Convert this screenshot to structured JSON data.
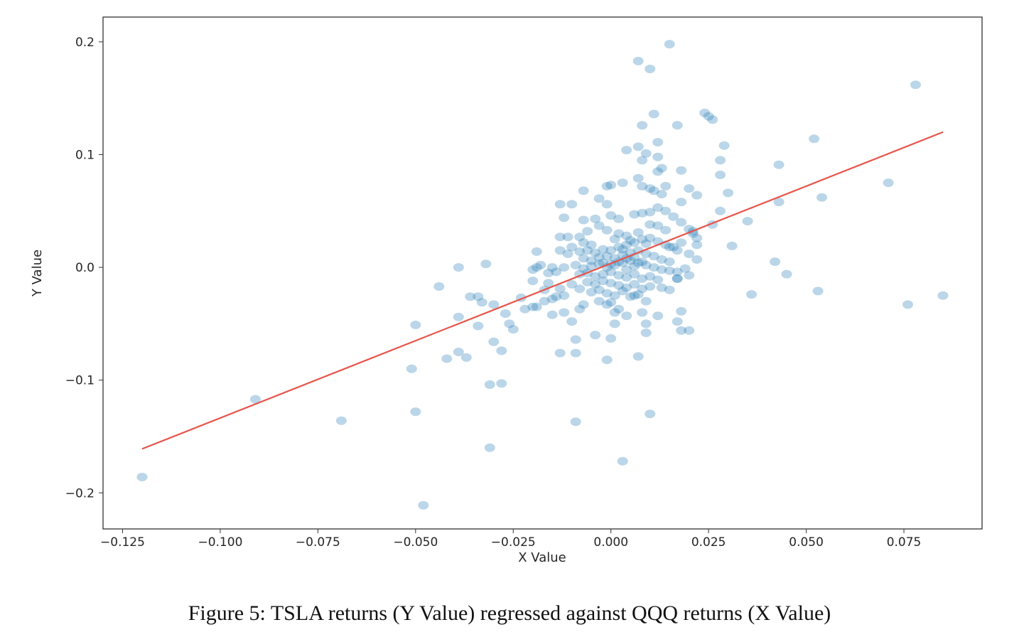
{
  "chart_data": {
    "type": "scatter",
    "xlabel": "X Value",
    "ylabel": "Y Value",
    "xlim": [
      -0.13,
      0.095
    ],
    "ylim": [
      -0.232,
      0.222
    ],
    "xticks": [
      -0.125,
      -0.1,
      -0.075,
      -0.05,
      -0.025,
      0.0,
      0.025,
      0.05,
      0.075
    ],
    "xtick_labels": [
      "−0.125",
      "−0.100",
      "−0.075",
      "−0.050",
      "−0.025",
      "0.000",
      "0.025",
      "0.050",
      "0.075"
    ],
    "yticks": [
      -0.2,
      -0.1,
      0.0,
      0.1,
      0.2
    ],
    "ytick_labels": [
      "−0.2",
      "−0.1",
      "0.0",
      "0.1",
      "0.2"
    ],
    "grid": false,
    "colors": {
      "points": "#1f77b4",
      "fit_line": "#e8544a",
      "axes": "#333333"
    },
    "fit_line": {
      "x": [
        -0.12,
        0.085
      ],
      "y": [
        -0.161,
        0.12
      ]
    },
    "series": [
      {
        "points": [
          [
            -0.12,
            -0.186
          ],
          [
            -0.091,
            -0.117
          ],
          [
            -0.069,
            -0.136
          ],
          [
            -0.048,
            -0.211
          ],
          [
            -0.05,
            -0.128
          ],
          [
            -0.051,
            -0.09
          ],
          [
            -0.031,
            -0.16
          ],
          [
            -0.031,
            -0.104
          ],
          [
            -0.028,
            -0.103
          ],
          [
            -0.05,
            -0.051
          ],
          [
            -0.042,
            -0.081
          ],
          [
            -0.037,
            -0.08
          ],
          [
            -0.039,
            -0.075
          ],
          [
            -0.03,
            -0.066
          ],
          [
            -0.028,
            -0.074
          ],
          [
            -0.039,
            -0.044
          ],
          [
            -0.034,
            -0.052
          ],
          [
            -0.044,
            -0.017
          ],
          [
            -0.039,
            0.0
          ],
          [
            -0.032,
            0.003
          ],
          [
            -0.036,
            -0.026
          ],
          [
            -0.034,
            -0.026
          ],
          [
            -0.033,
            -0.031
          ],
          [
            -0.03,
            -0.033
          ],
          [
            -0.027,
            -0.041
          ],
          [
            -0.026,
            -0.05
          ],
          [
            -0.025,
            -0.055
          ],
          [
            -0.022,
            -0.037
          ],
          [
            -0.023,
            -0.027
          ],
          [
            -0.02,
            -0.035
          ],
          [
            -0.019,
            -0.035
          ],
          [
            -0.017,
            -0.03
          ],
          [
            -0.02,
            -0.012
          ],
          [
            -0.019,
            0.0
          ],
          [
            -0.018,
            0.002
          ],
          [
            -0.016,
            -0.005
          ],
          [
            -0.02,
            -0.002
          ],
          [
            -0.016,
            -0.014
          ],
          [
            -0.017,
            -0.02
          ],
          [
            -0.019,
            0.014
          ],
          [
            -0.013,
            0.015
          ],
          [
            -0.011,
            0.012
          ],
          [
            -0.015,
            0.0
          ],
          [
            -0.014,
            -0.004
          ],
          [
            -0.012,
            0.0
          ],
          [
            -0.013,
            -0.019
          ],
          [
            -0.014,
            -0.026
          ],
          [
            -0.015,
            -0.028
          ],
          [
            -0.012,
            -0.025
          ],
          [
            -0.012,
            -0.04
          ],
          [
            -0.015,
            -0.042
          ],
          [
            -0.013,
            -0.076
          ],
          [
            -0.009,
            -0.076
          ],
          [
            -0.009,
            -0.064
          ],
          [
            -0.009,
            -0.137
          ],
          [
            -0.01,
            -0.048
          ],
          [
            -0.008,
            -0.037
          ],
          [
            -0.007,
            -0.033
          ],
          [
            -0.004,
            -0.06
          ],
          [
            -0.001,
            -0.082
          ],
          [
            0.003,
            -0.172
          ],
          [
            0.01,
            -0.13
          ],
          [
            0.007,
            -0.079
          ],
          [
            0.008,
            -0.04
          ],
          [
            0.009,
            -0.05
          ],
          [
            0.009,
            -0.058
          ],
          [
            0.012,
            -0.043
          ],
          [
            0.004,
            -0.043
          ],
          [
            0.001,
            -0.04
          ],
          [
            0.001,
            -0.05
          ],
          [
            0.0,
            -0.063
          ],
          [
            -0.001,
            -0.033
          ],
          [
            0.017,
            -0.048
          ],
          [
            0.018,
            -0.056
          ],
          [
            0.02,
            -0.056
          ],
          [
            0.018,
            -0.039
          ],
          [
            0.013,
            -0.018
          ],
          [
            0.015,
            -0.02
          ],
          [
            0.017,
            -0.01
          ],
          [
            0.02,
            -0.007
          ],
          [
            0.022,
            0.007
          ],
          [
            0.02,
            0.012
          ],
          [
            0.017,
            0.015
          ],
          [
            0.015,
            0.018
          ],
          [
            0.022,
            0.02
          ],
          [
            0.022,
            0.026
          ],
          [
            0.021,
            0.03
          ],
          [
            0.02,
            0.034
          ],
          [
            0.026,
            0.038
          ],
          [
            0.028,
            0.05
          ],
          [
            0.031,
            0.019
          ],
          [
            0.024,
            0.137
          ],
          [
            0.025,
            0.134
          ],
          [
            0.026,
            0.131
          ],
          [
            0.015,
            0.198
          ],
          [
            0.007,
            0.183
          ],
          [
            0.01,
            0.176
          ],
          [
            0.011,
            0.136
          ],
          [
            0.017,
            0.126
          ],
          [
            0.008,
            0.126
          ],
          [
            0.012,
            0.111
          ],
          [
            0.004,
            0.104
          ],
          [
            0.007,
            0.107
          ],
          [
            0.009,
            0.101
          ],
          [
            0.012,
            0.098
          ],
          [
            0.008,
            0.095
          ],
          [
            0.013,
            0.088
          ],
          [
            0.012,
            0.085
          ],
          [
            0.018,
            0.086
          ],
          [
            0.029,
            0.108
          ],
          [
            0.028,
            0.095
          ],
          [
            0.028,
            0.082
          ],
          [
            0.03,
            0.066
          ],
          [
            0.022,
            0.064
          ],
          [
            0.02,
            0.07
          ],
          [
            0.018,
            0.058
          ],
          [
            0.014,
            0.072
          ],
          [
            0.013,
            0.065
          ],
          [
            0.011,
            0.068
          ],
          [
            0.01,
            0.07
          ],
          [
            0.007,
            0.079
          ],
          [
            0.008,
            0.072
          ],
          [
            0.003,
            0.075
          ],
          [
            0.0,
            0.073
          ],
          [
            -0.001,
            0.072
          ],
          [
            -0.007,
            0.068
          ],
          [
            -0.003,
            0.061
          ],
          [
            -0.001,
            0.056
          ],
          [
            -0.01,
            0.056
          ],
          [
            -0.013,
            0.056
          ],
          [
            -0.012,
            0.044
          ],
          [
            -0.007,
            0.042
          ],
          [
            -0.004,
            0.043
          ],
          [
            0.0,
            0.046
          ],
          [
            0.002,
            0.043
          ],
          [
            0.006,
            0.047
          ],
          [
            0.008,
            0.048
          ],
          [
            0.01,
            0.049
          ],
          [
            0.012,
            0.053
          ],
          [
            0.014,
            0.05
          ],
          [
            0.016,
            0.045
          ],
          [
            0.018,
            0.04
          ],
          [
            0.021,
            0.032
          ],
          [
            0.014,
            0.033
          ],
          [
            0.012,
            0.037
          ],
          [
            0.01,
            0.038
          ],
          [
            0.007,
            0.031
          ],
          [
            0.004,
            0.028
          ],
          [
            0.002,
            0.03
          ],
          [
            -0.001,
            0.033
          ],
          [
            -0.003,
            0.037
          ],
          [
            -0.006,
            0.032
          ],
          [
            -0.008,
            0.027
          ],
          [
            -0.011,
            0.027
          ],
          [
            -0.013,
            0.027
          ],
          [
            -0.01,
            0.018
          ],
          [
            -0.008,
            0.014
          ],
          [
            -0.006,
            0.015
          ],
          [
            -0.004,
            0.013
          ],
          [
            -0.002,
            0.016
          ],
          [
            0.0,
            0.015
          ],
          [
            0.002,
            0.018
          ],
          [
            0.004,
            0.02
          ],
          [
            0.006,
            0.022
          ],
          [
            0.008,
            0.025
          ],
          [
            0.01,
            0.026
          ],
          [
            0.012,
            0.023
          ],
          [
            0.014,
            0.02
          ],
          [
            0.016,
            0.018
          ],
          [
            0.018,
            0.022
          ],
          [
            -0.007,
            0.008
          ],
          [
            -0.005,
            0.006
          ],
          [
            -0.003,
            0.009
          ],
          [
            -0.001,
            0.01
          ],
          [
            0.001,
            0.008
          ],
          [
            0.003,
            0.011
          ],
          [
            0.005,
            0.013
          ],
          [
            0.007,
            0.015
          ],
          [
            0.009,
            0.012
          ],
          [
            0.011,
            0.01
          ],
          [
            0.013,
            0.007
          ],
          [
            0.015,
            0.005
          ],
          [
            -0.009,
            0.002
          ],
          [
            -0.007,
            -0.001
          ],
          [
            -0.005,
            0.001
          ],
          [
            -0.003,
            0.003
          ],
          [
            -0.001,
            0.0
          ],
          [
            0.001,
            0.002
          ],
          [
            0.003,
            0.004
          ],
          [
            0.005,
            0.006
          ],
          [
            0.007,
            0.004
          ],
          [
            0.009,
            0.002
          ],
          [
            0.011,
            0.0
          ],
          [
            0.013,
            -0.002
          ],
          [
            0.015,
            -0.003
          ],
          [
            0.017,
            -0.004
          ],
          [
            -0.008,
            -0.006
          ],
          [
            -0.006,
            -0.005
          ],
          [
            -0.004,
            -0.008
          ],
          [
            -0.002,
            -0.006
          ],
          [
            0.0,
            -0.004
          ],
          [
            0.002,
            -0.007
          ],
          [
            0.004,
            -0.009
          ],
          [
            0.006,
            -0.006
          ],
          [
            0.008,
            -0.01
          ],
          [
            0.01,
            -0.008
          ],
          [
            0.012,
            -0.011
          ],
          [
            -0.006,
            -0.013
          ],
          [
            -0.004,
            -0.015
          ],
          [
            -0.002,
            -0.012
          ],
          [
            0.0,
            -0.014
          ],
          [
            0.002,
            -0.016
          ],
          [
            0.004,
            -0.018
          ],
          [
            0.006,
            -0.015
          ],
          [
            0.008,
            -0.019
          ],
          [
            0.01,
            -0.017
          ],
          [
            -0.005,
            -0.022
          ],
          [
            -0.003,
            -0.02
          ],
          [
            -0.001,
            -0.023
          ],
          [
            0.001,
            -0.025
          ],
          [
            0.003,
            -0.021
          ],
          [
            0.005,
            -0.026
          ],
          [
            0.007,
            -0.024
          ],
          [
            -0.008,
            -0.019
          ],
          [
            -0.01,
            -0.015
          ],
          [
            -0.003,
            -0.03
          ],
          [
            0.0,
            -0.031
          ],
          [
            0.002,
            -0.037
          ],
          [
            0.006,
            -0.025
          ],
          [
            0.009,
            -0.03
          ],
          [
            0.017,
            -0.01
          ],
          [
            0.019,
            -0.001
          ],
          [
            0.004,
            -0.002
          ],
          [
            0.006,
            0.001
          ],
          [
            0.008,
            0.005
          ],
          [
            0.002,
            0.005
          ],
          [
            0.0,
            0.003
          ],
          [
            -0.002,
            0.004
          ],
          [
            0.004,
            0.008
          ],
          [
            0.006,
            0.009
          ],
          [
            0.003,
            0.016
          ],
          [
            -0.005,
            0.02
          ],
          [
            -0.007,
            0.022
          ],
          [
            0.001,
            0.025
          ],
          [
            0.005,
            0.024
          ],
          [
            0.009,
            0.021
          ],
          [
            0.043,
            0.091
          ],
          [
            0.052,
            0.114
          ],
          [
            0.054,
            0.062
          ],
          [
            0.043,
            0.058
          ],
          [
            0.035,
            0.041
          ],
          [
            0.042,
            0.005
          ],
          [
            0.045,
            -0.006
          ],
          [
            0.036,
            -0.024
          ],
          [
            0.053,
            -0.021
          ],
          [
            0.071,
            0.075
          ],
          [
            0.078,
            0.162
          ],
          [
            0.076,
            -0.033
          ],
          [
            0.085,
            -0.025
          ]
        ]
      }
    ]
  },
  "caption": "Figure 5: TSLA returns (Y Value) regressed against QQQ returns (X Value)"
}
